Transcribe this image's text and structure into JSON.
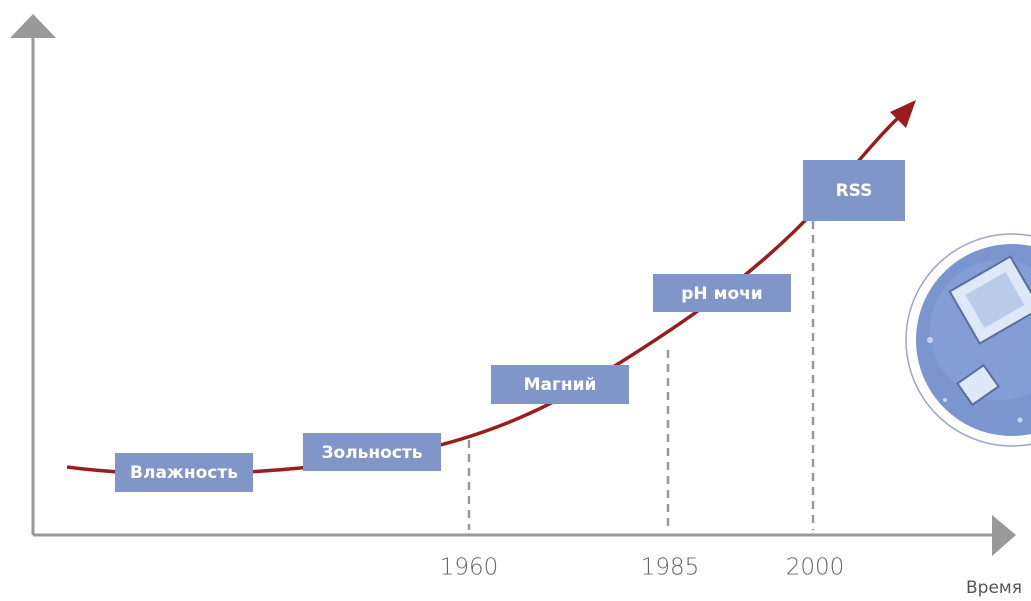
{
  "axis": {
    "x_label": "Время"
  },
  "stages": [
    {
      "label": "Влажность"
    },
    {
      "label": "Зольность"
    },
    {
      "label": "Магний"
    },
    {
      "label": "pH мочи"
    },
    {
      "label": "RSS"
    }
  ],
  "years": [
    "1960",
    "1985",
    "2000"
  ]
}
